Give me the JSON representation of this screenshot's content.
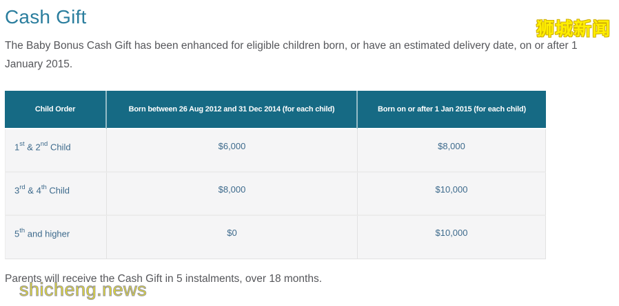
{
  "header": {
    "title": "Cash Gift",
    "intro": "The Baby Bonus Cash Gift has been enhanced for eligible children born, or have an estimated delivery date, on or after 1 January 2015."
  },
  "table": {
    "columns": [
      "Child Order",
      "Born between 26 Aug 2012 and 31 Dec 2014 (for each child)",
      "Born on or after 1 Jan 2015 (for each child)"
    ],
    "rows": [
      {
        "order_parts": {
          "b1": "1",
          "s1": "st",
          "b2": " & 2",
          "s2": "nd",
          "b3": " Child"
        },
        "born_2012_2014": "$6,000",
        "born_2015": "$8,000"
      },
      {
        "order_parts": {
          "b1": "3",
          "s1": "rd",
          "b2": " & 4",
          "s2": "th",
          "b3": " Child"
        },
        "born_2012_2014": "$8,000",
        "born_2015": "$10,000"
      },
      {
        "order_parts": {
          "b1": "5",
          "s1": "th",
          "b2": " and higher",
          "s2": "",
          "b3": ""
        },
        "born_2012_2014": "$0",
        "born_2015": "$10,000"
      }
    ]
  },
  "footer": {
    "note": "Parents will receive the Cash Gift in 5 instalments, over 18 months."
  },
  "watermarks": {
    "site_cn": "狮城新闻",
    "site_en": "shicheng.news"
  },
  "colors": {
    "table_header_teal": "#166a84",
    "heading_teal": "#2b7e9e",
    "cell_text_blue": "#3d6a8c",
    "body_text_gray": "#55565a",
    "row_background": "#f5f5f6",
    "watermark_yellow": "#f7ea12"
  }
}
